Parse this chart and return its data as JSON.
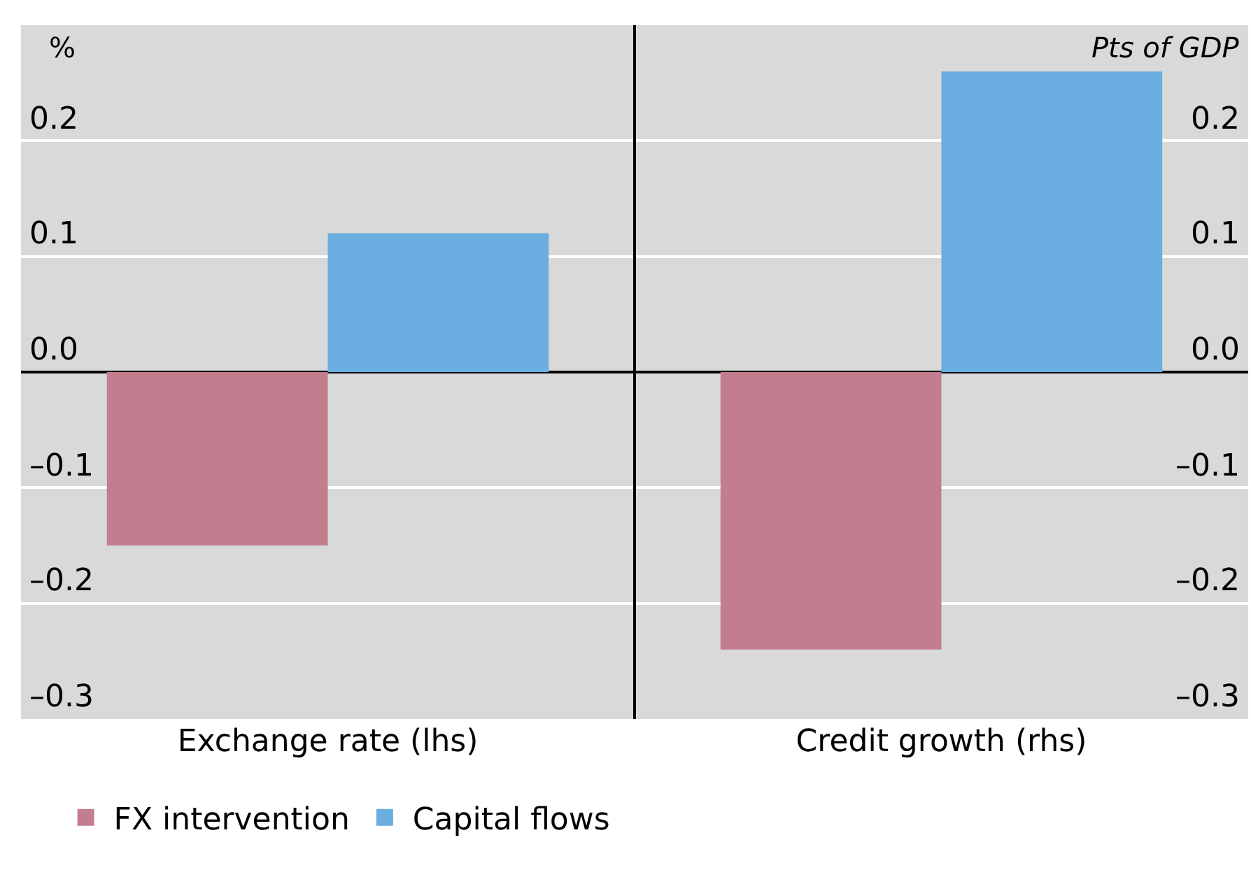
{
  "chart_data": {
    "type": "bar",
    "ylabel": "%",
    "y2label": "Pts of GDP",
    "categories": [
      "Exchange rate (lhs)",
      "Credit growth (rhs)"
    ],
    "series": [
      {
        "name": "FX intervention",
        "color": "#c27e8f",
        "values": [
          -0.15,
          -0.24
        ]
      },
      {
        "name": "Capital flows",
        "color": "#6aade0",
        "values": [
          0.12,
          0.26
        ]
      }
    ],
    "ylim": [
      -0.3,
      0.3
    ],
    "yticks": [
      {
        "value": -0.3,
        "label": "–0.3"
      },
      {
        "value": -0.2,
        "label": "–0.2"
      },
      {
        "value": -0.1,
        "label": "–0.1"
      },
      {
        "value": 0,
        "label": "0.0"
      },
      0.1,
      0.2
    ],
    "y2lim": [
      -0.3,
      0.3
    ],
    "y2ticks": [
      {
        "value": -0.3,
        "label": "–0.3"
      },
      {
        "value": -0.2,
        "label": "–0.2"
      },
      {
        "value": -0.1,
        "label": "–0.1"
      },
      {
        "value": 0,
        "label": "0.0"
      },
      0.1,
      0.2
    ],
    "grid": "y",
    "legend": "bottom left"
  }
}
